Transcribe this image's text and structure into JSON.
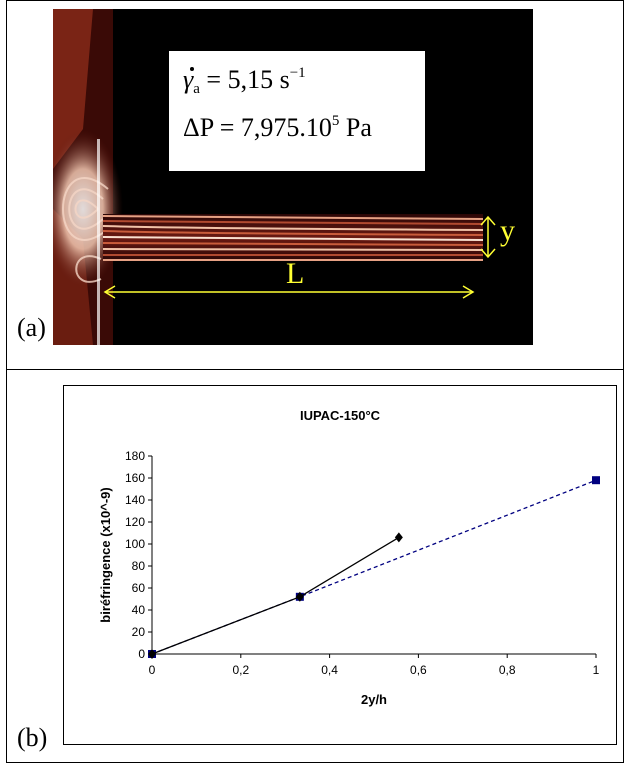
{
  "panel_a": {
    "tag": "(a)",
    "formula_1": {
      "gamma": "γ",
      "subscript": "a",
      "value": " = 5,15 s",
      "exponent": "−1"
    },
    "formula_2": {
      "prefix": "ΔP = 7,975.10",
      "exponent": "5",
      "suffix": " Pa"
    },
    "y_label": "y",
    "L_label": "L",
    "arrow_color": "#ffff33",
    "photo_background": "#000000"
  },
  "panel_b": {
    "tag": "(b)"
  },
  "chart_data": {
    "type": "line",
    "title": "IUPAC-150°C",
    "xlabel": "2y/h",
    "ylabel": "biréfringence (x10^-9)",
    "xlim": [
      0,
      1
    ],
    "ylim": [
      0,
      180
    ],
    "xticks": [
      0,
      0.2,
      0.4,
      0.6,
      0.8,
      1
    ],
    "xtick_labels": [
      "0",
      "0,2",
      "0,4",
      "0,6",
      "0,8",
      "1"
    ],
    "yticks": [
      0,
      20,
      40,
      60,
      80,
      100,
      120,
      140,
      160,
      180
    ],
    "ytick_labels": [
      "0",
      "20",
      "40",
      "60",
      "80",
      "100",
      "120",
      "140",
      "160",
      "180"
    ],
    "grid": false,
    "legend": "none",
    "series": [
      {
        "x": [
          0,
          0.333,
          1
        ],
        "y": [
          0,
          52,
          158
        ],
        "marker": "square",
        "line": "dashed",
        "color": "#000080"
      },
      {
        "x": [
          0,
          0.333,
          0.556
        ],
        "y": [
          0,
          52,
          106
        ],
        "marker": "diamond",
        "line": "solid",
        "color": "#000000"
      }
    ]
  }
}
